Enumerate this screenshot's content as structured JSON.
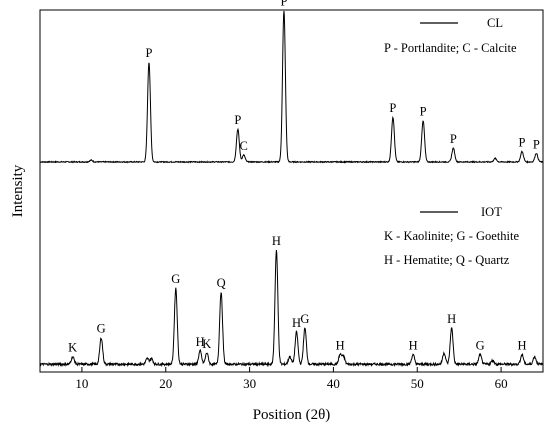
{
  "chart_data": {
    "type": "line",
    "xlabel": "Position (2θ)",
    "ylabel": "Intensity",
    "xlim": [
      5,
      65
    ],
    "x_ticks": [
      10,
      20,
      30,
      40,
      50,
      60
    ],
    "y_ticks_shown": false,
    "legend_placement": "top-right",
    "series": [
      {
        "name": "CL",
        "legend_note": "P - Portlandite; C - Calcite",
        "baseline": 0.14,
        "peaks": [
          {
            "x": 11.1,
            "h": 0.01,
            "label": ""
          },
          {
            "x": 18.0,
            "h": 0.58,
            "label": "P"
          },
          {
            "x": 28.6,
            "h": 0.19,
            "label": "P"
          },
          {
            "x": 29.3,
            "h": 0.04,
            "label": "C"
          },
          {
            "x": 34.1,
            "h": 0.88,
            "label": "P"
          },
          {
            "x": 47.1,
            "h": 0.26,
            "label": "P"
          },
          {
            "x": 50.7,
            "h": 0.24,
            "label": "P"
          },
          {
            "x": 54.3,
            "h": 0.08,
            "label": "P"
          },
          {
            "x": 59.3,
            "h": 0.02,
            "label": ""
          },
          {
            "x": 62.5,
            "h": 0.06,
            "label": "P"
          },
          {
            "x": 64.2,
            "h": 0.05,
            "label": "P"
          }
        ]
      },
      {
        "name": "IOT",
        "legend_note_lines": [
          "K - Kaolinite; G - Goethite",
          "H - Hematite; Q - Quartz"
        ],
        "baseline": 0.02,
        "peaks": [
          {
            "x": 8.9,
            "h": 0.04,
            "label": "K"
          },
          {
            "x": 12.3,
            "h": 0.14,
            "label": "G"
          },
          {
            "x": 17.8,
            "h": 0.03,
            "label": ""
          },
          {
            "x": 18.3,
            "h": 0.03,
            "label": ""
          },
          {
            "x": 21.2,
            "h": 0.4,
            "label": "G"
          },
          {
            "x": 24.1,
            "h": 0.07,
            "label": "H"
          },
          {
            "x": 24.9,
            "h": 0.06,
            "label": "K"
          },
          {
            "x": 26.6,
            "h": 0.38,
            "label": "Q"
          },
          {
            "x": 33.2,
            "h": 0.6,
            "label": "H"
          },
          {
            "x": 34.8,
            "h": 0.04,
            "label": ""
          },
          {
            "x": 35.6,
            "h": 0.17,
            "label": "H"
          },
          {
            "x": 36.6,
            "h": 0.19,
            "label": "G"
          },
          {
            "x": 40.8,
            "h": 0.05,
            "label": "H"
          },
          {
            "x": 41.2,
            "h": 0.04,
            "label": ""
          },
          {
            "x": 49.5,
            "h": 0.05,
            "label": "H"
          },
          {
            "x": 53.2,
            "h": 0.06,
            "label": ""
          },
          {
            "x": 54.1,
            "h": 0.19,
            "label": "H"
          },
          {
            "x": 57.5,
            "h": 0.05,
            "label": "G"
          },
          {
            "x": 59.0,
            "h": 0.02,
            "label": ""
          },
          {
            "x": 62.5,
            "h": 0.05,
            "label": "H"
          },
          {
            "x": 64.0,
            "h": 0.04,
            "label": ""
          }
        ]
      }
    ]
  }
}
